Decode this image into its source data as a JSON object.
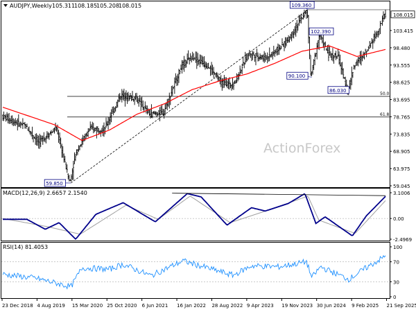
{
  "chart_data": [
    {
      "panel": "price",
      "type": "ohlc",
      "title": "AUDJPY,Weekly",
      "ohlc_readout": [
        "105.311",
        "108.185",
        "105.208",
        "108.015"
      ],
      "last_price_label": "108.015",
      "watermark": "ActionForex",
      "ylim": [
        59.045,
        109.36
      ],
      "y_tick_labels": [
        "103.415",
        "98.480",
        "93.555",
        "88.625",
        "83.695",
        "78.765",
        "73.835",
        "68.905",
        "63.975",
        "59.045"
      ],
      "x_tick_labels": [
        "23 Dec 2018",
        "4 Aug 2019",
        "15 Mar 2020",
        "25 Oct 2020",
        "6 Jun 2021",
        "16 Jan 2022",
        "28 Aug 2022",
        "9 Apr 2023",
        "19 Nov 2023",
        "30 Jun 2024",
        "9 Feb 2025",
        "21 Sep 2025"
      ],
      "price_anchors": [
        {
          "date": "2018-12-23",
          "value": 79.0
        },
        {
          "date": "2019-06-01",
          "value": 76.0
        },
        {
          "date": "2019-08-25",
          "value": 71.5
        },
        {
          "date": "2019-12-20",
          "value": 75.5
        },
        {
          "date": "2020-03-19",
          "value": 59.85
        },
        {
          "date": "2020-05-01",
          "value": 69.0
        },
        {
          "date": "2020-08-01",
          "value": 75.5
        },
        {
          "date": "2020-11-01",
          "value": 75.0
        },
        {
          "date": "2021-02-20",
          "value": 85.0
        },
        {
          "date": "2021-06-01",
          "value": 84.0
        },
        {
          "date": "2021-09-01",
          "value": 79.5
        },
        {
          "date": "2021-12-01",
          "value": 80.0
        },
        {
          "date": "2022-04-01",
          "value": 93.5
        },
        {
          "date": "2022-06-10",
          "value": 96.0
        },
        {
          "date": "2022-10-01",
          "value": 93.0
        },
        {
          "date": "2022-12-20",
          "value": 88.5
        },
        {
          "date": "2023-03-10",
          "value": 88.0
        },
        {
          "date": "2023-06-20",
          "value": 97.0
        },
        {
          "date": "2023-10-01",
          "value": 95.5
        },
        {
          "date": "2023-12-01",
          "value": 97.0
        },
        {
          "date": "2024-03-01",
          "value": 100.5
        },
        {
          "date": "2024-07-11",
          "value": 109.36
        },
        {
          "date": "2024-08-05",
          "value": 90.1
        },
        {
          "date": "2024-10-01",
          "value": 102.39
        },
        {
          "date": "2024-12-01",
          "value": 96.5
        },
        {
          "date": "2025-02-01",
          "value": 96.0
        },
        {
          "date": "2025-04-07",
          "value": 86.03
        },
        {
          "date": "2025-05-20",
          "value": 93.5
        },
        {
          "date": "2025-07-25",
          "value": 96.5
        },
        {
          "date": "2025-09-01",
          "value": 99.5
        },
        {
          "date": "2025-10-20",
          "value": 103.0
        },
        {
          "date": "2025-12-07",
          "value": 108.015
        }
      ],
      "moving_average_anchors": [
        {
          "date": "2018-12-23",
          "value": 81.5
        },
        {
          "date": "2019-12-01",
          "value": 76.5
        },
        {
          "date": "2020-06-01",
          "value": 72.0
        },
        {
          "date": "2020-12-01",
          "value": 75.0
        },
        {
          "date": "2021-06-01",
          "value": 79.5
        },
        {
          "date": "2021-12-01",
          "value": 82.5
        },
        {
          "date": "2022-06-01",
          "value": 86.5
        },
        {
          "date": "2022-12-01",
          "value": 89.0
        },
        {
          "date": "2023-06-01",
          "value": 91.0
        },
        {
          "date": "2023-12-01",
          "value": 94.0
        },
        {
          "date": "2024-06-01",
          "value": 97.5
        },
        {
          "date": "2024-12-01",
          "value": 99.0
        },
        {
          "date": "2025-06-01",
          "value": 96.0
        },
        {
          "date": "2025-12-07",
          "value": 98.0
        }
      ],
      "annotations": [
        {
          "text": "109.360",
          "date": "2024-07-11",
          "value": 109.36
        },
        {
          "text": "102.390",
          "date": "2024-10-01",
          "value": 102.39
        },
        {
          "text": "90.100",
          "date": "2024-08-05",
          "value": 90.1
        },
        {
          "text": "86.030",
          "date": "2025-04-07",
          "value": 86.03
        },
        {
          "text": "59.850",
          "date": "2020-03-19",
          "value": 59.85
        }
      ],
      "fib_levels": [
        {
          "label": "50.0",
          "value": 84.6
        },
        {
          "label": "61.8",
          "value": 78.7
        }
      ],
      "trendline": {
        "from": {
          "date": "2020-03-19",
          "value": 59.85
        },
        "to": {
          "date": "2024-07-11",
          "value": 109.36
        }
      },
      "colors": {
        "bars": "#000000",
        "moving_average": "#ff0000",
        "annotation": "#000080",
        "level_lines": "#000000"
      }
    },
    {
      "panel": "macd",
      "type": "line",
      "title": "MACD(12,26,9) 2.6657 2.1540",
      "y_tick_labels": [
        "3.1006",
        "0.00",
        "-2.4969"
      ],
      "ylim": [
        -2.4969,
        3.1006
      ],
      "macd_anchors": [
        {
          "date": "2018-12-23",
          "value": -0.1
        },
        {
          "date": "2019-06-01",
          "value": -0.1
        },
        {
          "date": "2019-10-01",
          "value": -1.3
        },
        {
          "date": "2020-01-01",
          "value": -0.5
        },
        {
          "date": "2020-04-20",
          "value": -2.5
        },
        {
          "date": "2020-09-01",
          "value": 0.5
        },
        {
          "date": "2021-03-01",
          "value": 1.9
        },
        {
          "date": "2021-10-01",
          "value": -0.4
        },
        {
          "date": "2022-05-01",
          "value": 3.0
        },
        {
          "date": "2022-08-01",
          "value": 2.6
        },
        {
          "date": "2023-01-20",
          "value": -0.8
        },
        {
          "date": "2023-07-01",
          "value": 1.3
        },
        {
          "date": "2023-10-01",
          "value": 0.9
        },
        {
          "date": "2024-03-01",
          "value": 1.8
        },
        {
          "date": "2024-06-20",
          "value": 3.0
        },
        {
          "date": "2024-09-01",
          "value": -0.6
        },
        {
          "date": "2024-11-01",
          "value": 0.2
        },
        {
          "date": "2025-05-01",
          "value": -2.1
        },
        {
          "date": "2025-08-01",
          "value": 0.3
        },
        {
          "date": "2025-12-07",
          "value": 2.6657
        }
      ],
      "signal_anchors": [
        {
          "date": "2018-12-23",
          "value": 0.0
        },
        {
          "date": "2019-10-20",
          "value": -1.0
        },
        {
          "date": "2020-05-20",
          "value": -1.9
        },
        {
          "date": "2021-03-20",
          "value": 1.6
        },
        {
          "date": "2021-10-20",
          "value": -0.1
        },
        {
          "date": "2022-05-20",
          "value": 2.7
        },
        {
          "date": "2023-02-10",
          "value": -0.5
        },
        {
          "date": "2023-10-20",
          "value": 1.0
        },
        {
          "date": "2024-07-10",
          "value": 2.7
        },
        {
          "date": "2024-09-20",
          "value": -0.2
        },
        {
          "date": "2025-05-20",
          "value": -1.8
        },
        {
          "date": "2025-12-07",
          "value": 2.154
        }
      ],
      "trendline": {
        "from": {
          "date": "2022-01-20",
          "value": 3.05
        },
        "to": {
          "date": "2025-12-07",
          "value": 2.75
        }
      },
      "colors": {
        "macd": "#00008b",
        "signal": "#a0a0a0"
      }
    },
    {
      "panel": "rsi",
      "type": "line",
      "title": "RSI(14) 81.4053",
      "y_tick_labels": [
        "100",
        "70",
        "30",
        "0"
      ],
      "ylim": [
        0,
        100
      ],
      "levels": [
        70,
        30
      ],
      "rsi_anchors": [
        {
          "date": "2018-12-23",
          "value": 45
        },
        {
          "date": "2019-08-01",
          "value": 37
        },
        {
          "date": "2020-03-20",
          "value": 20
        },
        {
          "date": "2020-06-01",
          "value": 58
        },
        {
          "date": "2020-12-01",
          "value": 55
        },
        {
          "date": "2021-03-01",
          "value": 65
        },
        {
          "date": "2021-09-01",
          "value": 42
        },
        {
          "date": "2022-04-01",
          "value": 72
        },
        {
          "date": "2022-10-01",
          "value": 56
        },
        {
          "date": "2023-03-01",
          "value": 43
        },
        {
          "date": "2023-07-01",
          "value": 62
        },
        {
          "date": "2024-01-01",
          "value": 60
        },
        {
          "date": "2024-07-01",
          "value": 70
        },
        {
          "date": "2024-08-05",
          "value": 38
        },
        {
          "date": "2024-10-01",
          "value": 60
        },
        {
          "date": "2025-04-07",
          "value": 35
        },
        {
          "date": "2025-08-01",
          "value": 58
        },
        {
          "date": "2025-12-07",
          "value": 81.4053
        }
      ],
      "colors": {
        "rsi": "#1e90ff"
      }
    }
  ]
}
